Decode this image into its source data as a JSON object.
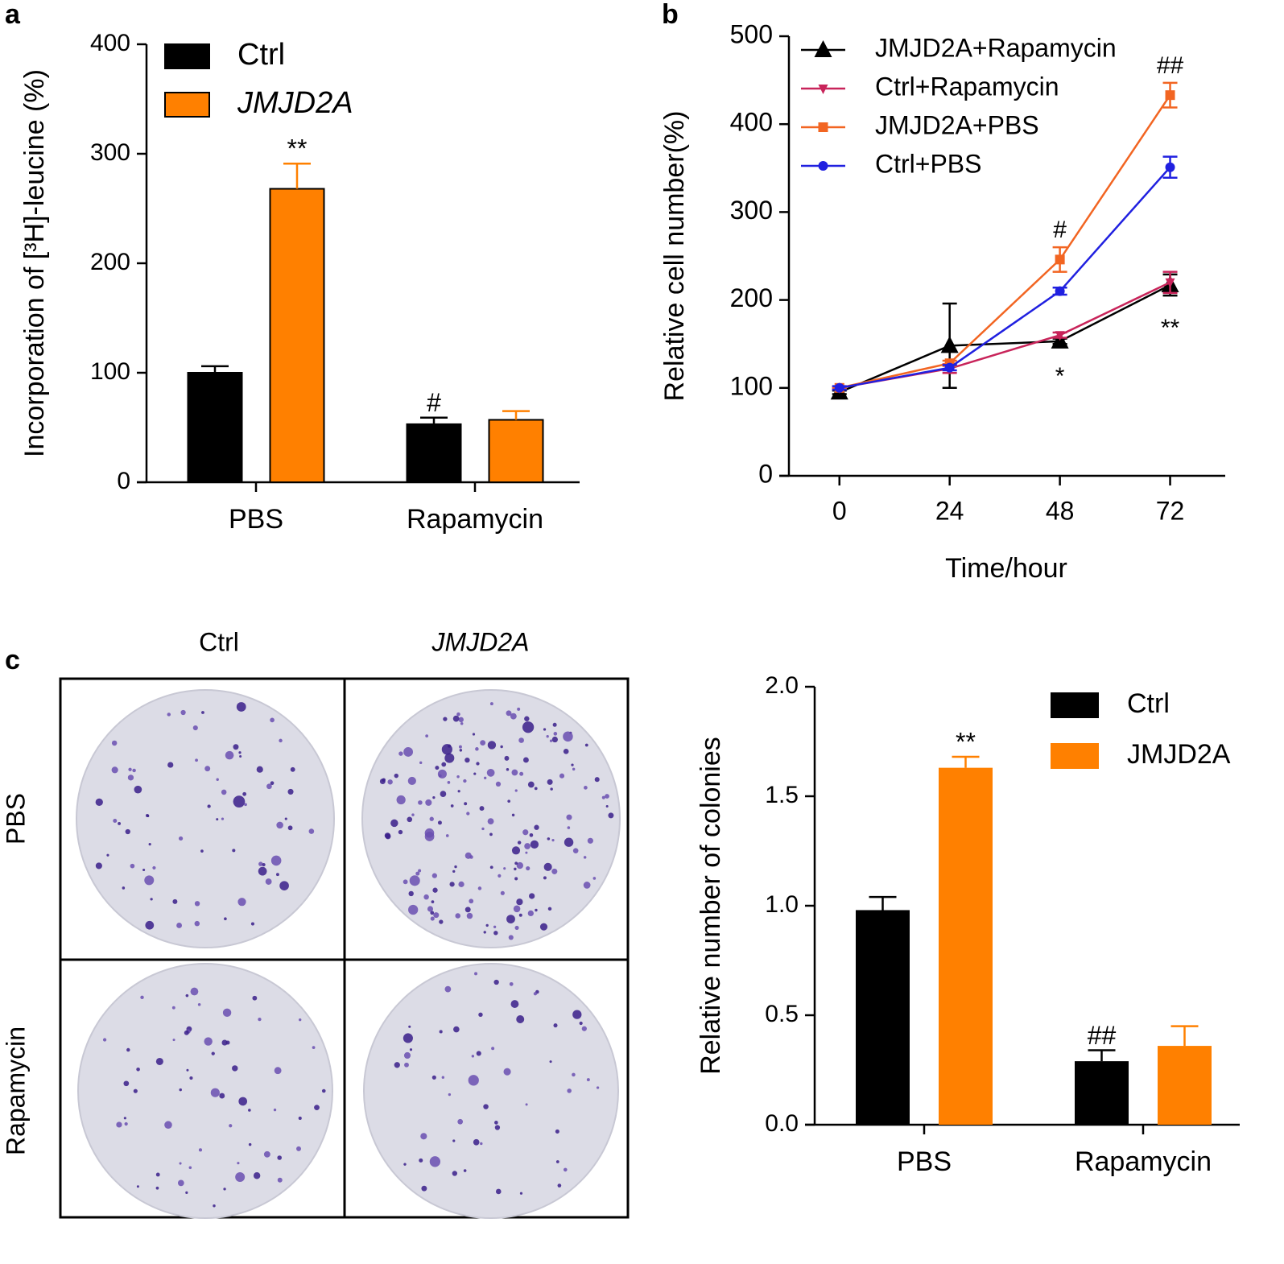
{
  "chart_data": [
    {
      "type": "bar",
      "panel": "a",
      "ylabel": "Incorporation of [³H]-leucine (%)",
      "categories": [
        "PBS",
        "Rapamycin"
      ],
      "series": [
        {
          "name": "Ctrl",
          "color": "#000000",
          "values": [
            100,
            53
          ],
          "errors": [
            6,
            6
          ],
          "annotations": [
            null,
            "#"
          ]
        },
        {
          "name": "JMJD2A",
          "color": "#ff8000",
          "values": [
            268,
            57
          ],
          "errors": [
            23,
            8
          ],
          "annotations": [
            "**",
            null
          ]
        }
      ],
      "ylim": [
        0,
        400
      ],
      "yticks": [
        0,
        100,
        200,
        300,
        400
      ]
    },
    {
      "type": "line",
      "panel": "b",
      "xlabel": "Time/hour",
      "ylabel": "Relative cell number(%)",
      "x": [
        0,
        24,
        48,
        72
      ],
      "series": [
        {
          "name": "JMJD2A+Rapamycin",
          "color": "#000000",
          "marker": "triangle",
          "values": [
            95,
            148,
            153,
            217
          ],
          "errors": [
            2,
            48,
            3,
            12
          ],
          "annotations": [
            null,
            null,
            "*",
            "**"
          ]
        },
        {
          "name": "Ctrl+Rapamycin",
          "color": "#c8245a",
          "marker": "down-triangle",
          "values": [
            100,
            122,
            160,
            220
          ],
          "errors": [
            1,
            5,
            3,
            12
          ],
          "annotations": [
            null,
            null,
            null,
            null
          ]
        },
        {
          "name": "JMJD2A+PBS",
          "color": "#f26522",
          "marker": "square",
          "values": [
            100,
            128,
            246,
            433
          ],
          "errors": [
            1,
            3,
            14,
            14
          ],
          "annotations": [
            null,
            null,
            "#",
            "##"
          ]
        },
        {
          "name": "Ctrl+PBS",
          "color": "#2020e0",
          "marker": "circle",
          "values": [
            100,
            123,
            210,
            351
          ],
          "errors": [
            2,
            3,
            4,
            12
          ],
          "annotations": [
            null,
            null,
            null,
            null
          ]
        }
      ],
      "xlim": [
        -11,
        84
      ],
      "xticks": [
        0,
        24,
        48,
        72
      ],
      "ylim": [
        0,
        500
      ],
      "yticks": [
        0,
        100,
        200,
        300,
        400,
        500
      ]
    },
    {
      "type": "bar",
      "ylabel": "Relative number of colonies",
      "categories": [
        "PBS",
        "Rapamycin"
      ],
      "series": [
        {
          "name": "Ctrl",
          "color": "#000000",
          "values": [
            0.98,
            0.29
          ],
          "errors": [
            0.06,
            0.05
          ],
          "annotations": [
            null,
            "##"
          ]
        },
        {
          "name": "JMJD2A",
          "color": "#ff8000",
          "values": [
            1.63,
            0.36
          ],
          "errors": [
            0.05,
            0.09
          ],
          "annotations": [
            "**",
            null
          ]
        }
      ],
      "ylim": [
        0,
        2
      ],
      "yticks": [
        {
          "value": 0,
          "label": "0.0"
        },
        {
          "value": 0.5,
          "label": "0.5"
        },
        {
          "value": 1,
          "label": "1.0"
        },
        {
          "value": 1.5,
          "label": "1.5"
        },
        {
          "value": 2,
          "label": "2.0"
        }
      ]
    }
  ],
  "plates": {
    "panel": "c",
    "columns": [
      "Ctrl",
      "JMJD2A"
    ],
    "rows": [
      "PBS",
      "Rapamycin"
    ]
  }
}
